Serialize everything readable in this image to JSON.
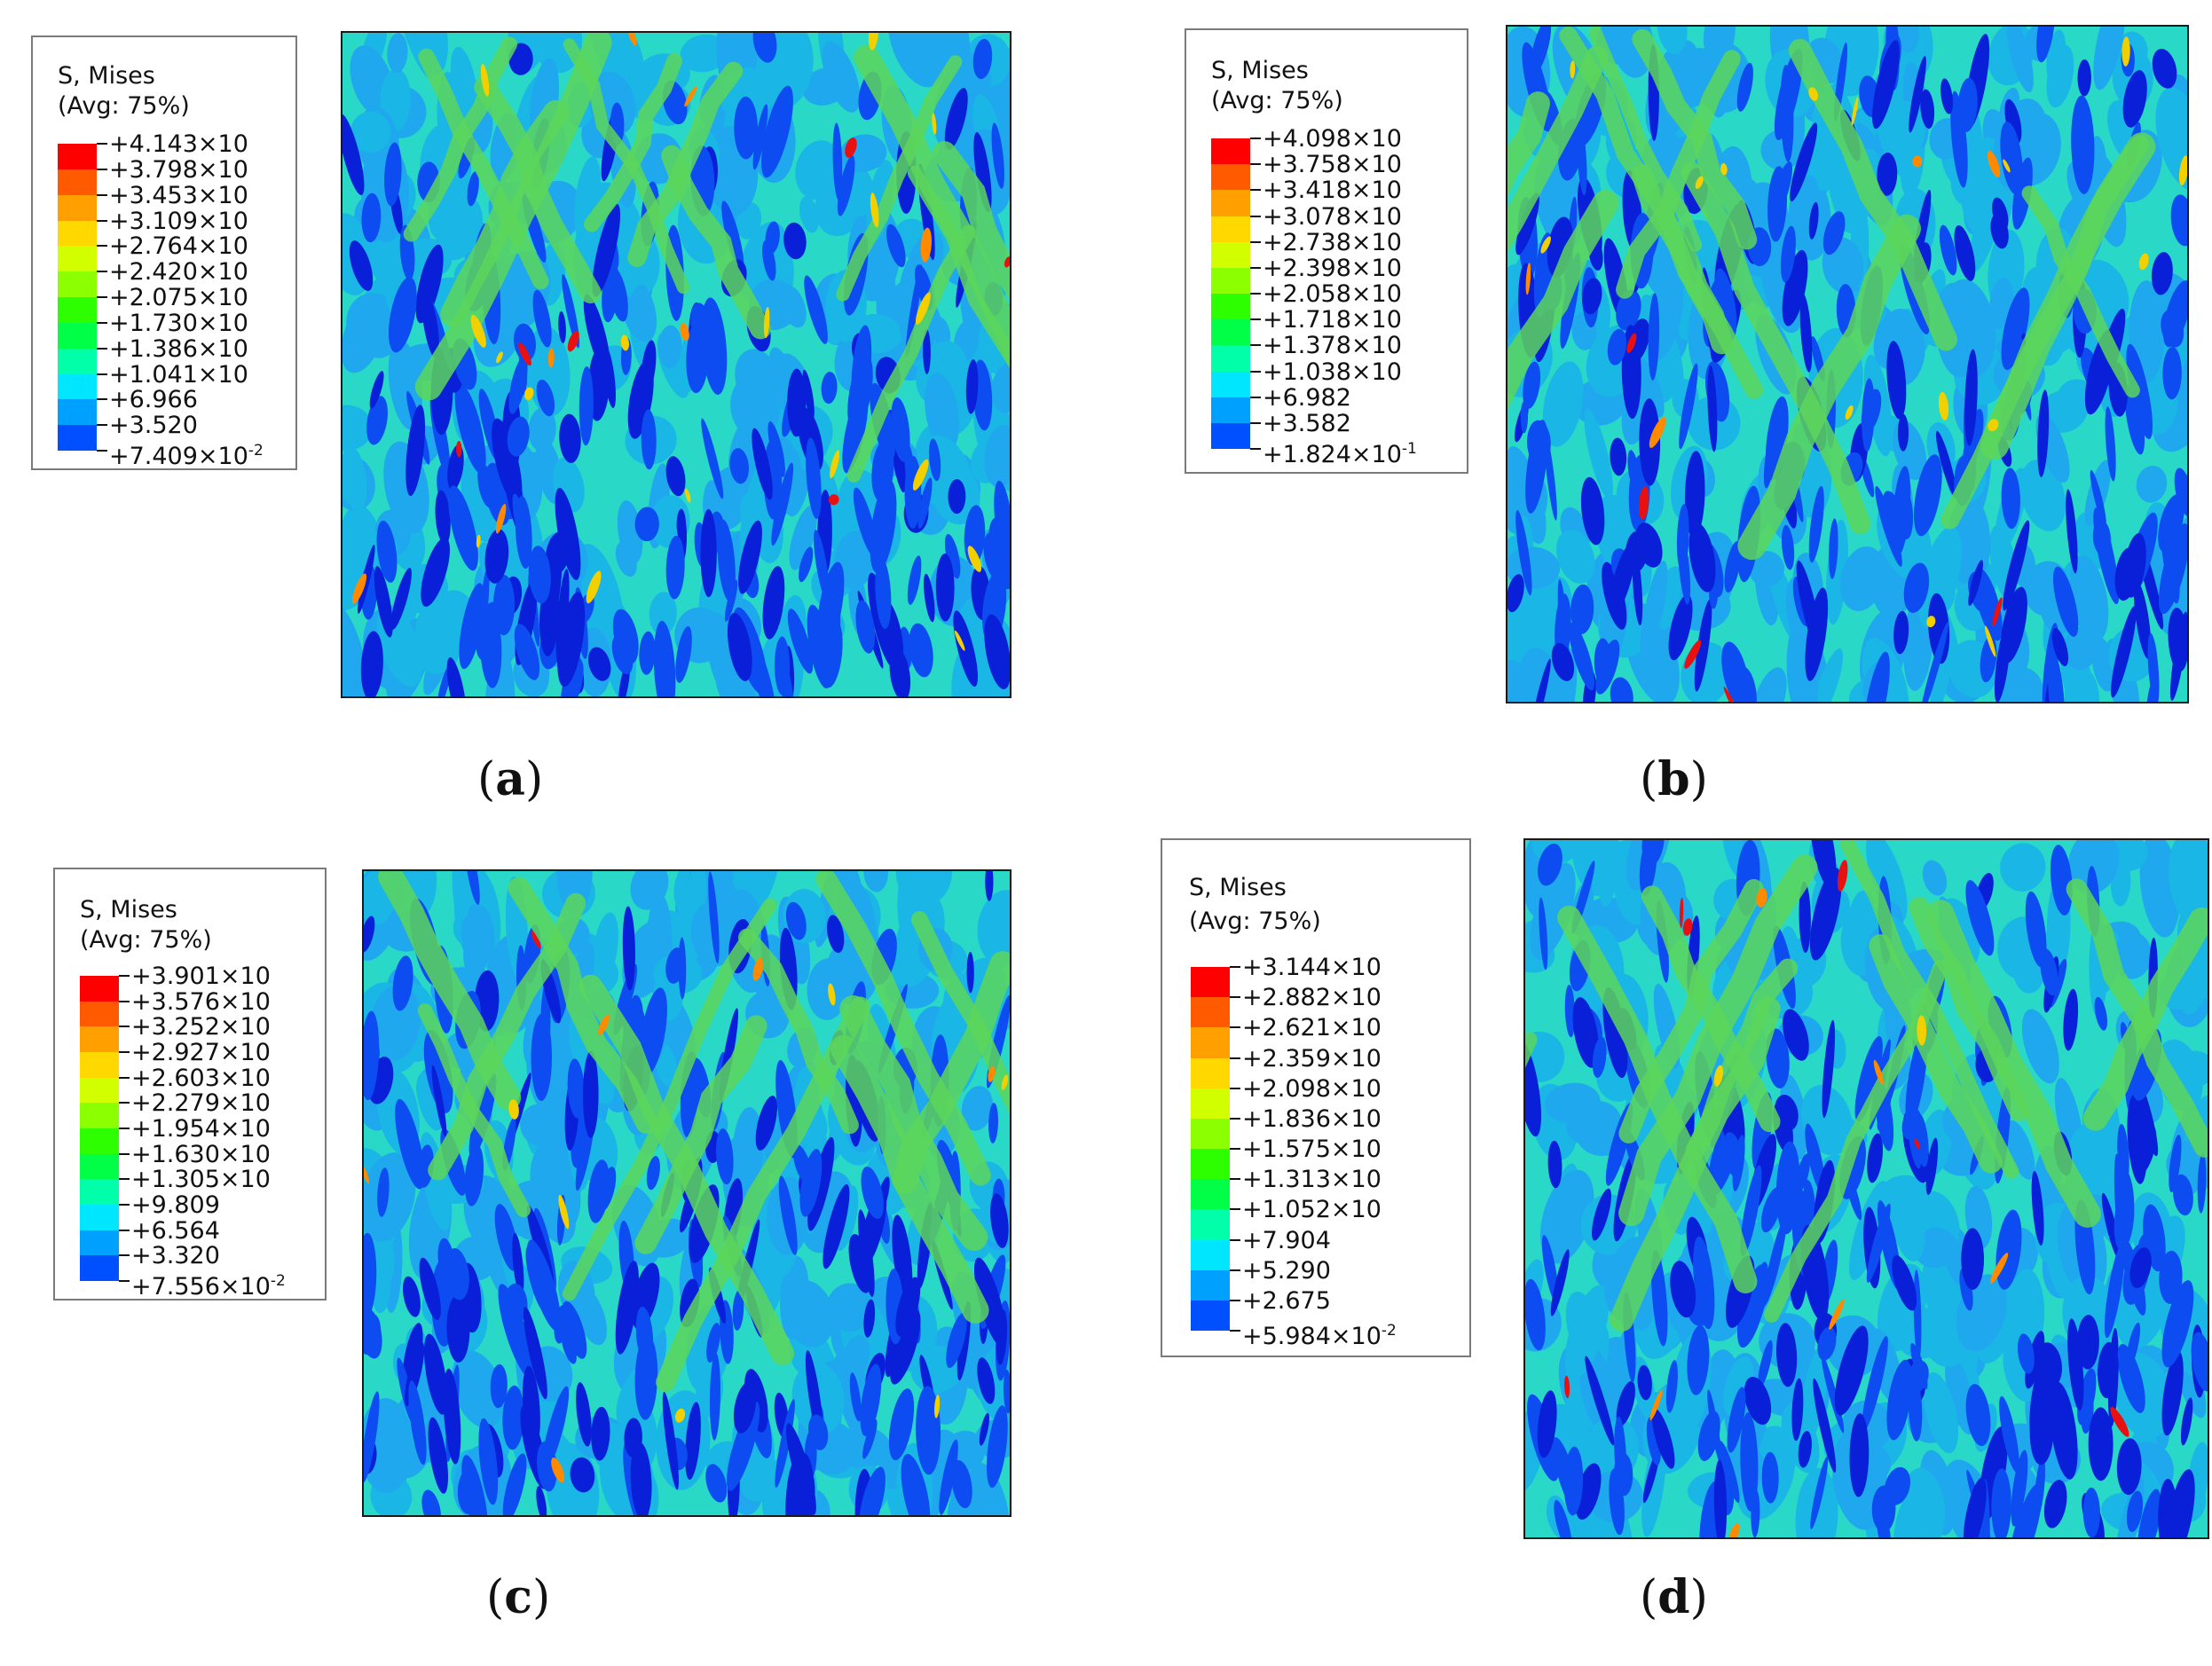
{
  "panels": [
    {
      "id": "a",
      "caption": "a",
      "legend": {
        "title": "S, Mises",
        "subtitle": "(Avg: 75%)",
        "levels": [
          "+4.143×10",
          "+3.798×10",
          "+3.453×10",
          "+3.109×10",
          "+2.764×10",
          "+2.420×10",
          "+2.075×10",
          "+1.730×10",
          "+1.386×10",
          "+1.041×10",
          "+6.966",
          "+3.520",
          "+7.409×10"
        ],
        "last_exponent": "-2"
      },
      "hot_level": 0.75
    },
    {
      "id": "b",
      "caption": "b",
      "legend": {
        "title": "S, Mises",
        "subtitle": "(Avg: 75%)",
        "levels": [
          "+4.098×10",
          "+3.758×10",
          "+3.418×10",
          "+3.078×10",
          "+2.738×10",
          "+2.398×10",
          "+2.058×10",
          "+1.718×10",
          "+1.378×10",
          "+1.038×10",
          "+6.982",
          "+3.582",
          "+1.824×10"
        ],
        "last_exponent": "-1"
      },
      "hot_level": 0.6
    },
    {
      "id": "c",
      "caption": "c",
      "legend": {
        "title": "S, Mises",
        "subtitle": "(Avg: 75%)",
        "levels": [
          "+3.901×10",
          "+3.576×10",
          "+3.252×10",
          "+2.927×10",
          "+2.603×10",
          "+2.279×10",
          "+1.954×10",
          "+1.630×10",
          "+1.305×10",
          "+9.809",
          "+6.564",
          "+3.320",
          "+7.556×10"
        ],
        "last_exponent": "-2"
      },
      "hot_level": 0.3
    },
    {
      "id": "d",
      "caption": "d",
      "legend": {
        "title": "S, Mises",
        "subtitle": "(Avg: 75%)",
        "levels": [
          "+3.144×10",
          "+2.882×10",
          "+2.621×10",
          "+2.359×10",
          "+2.098×10",
          "+1.836×10",
          "+1.575×10",
          "+1.313×10",
          "+1.052×10",
          "+7.904",
          "+5.290",
          "+2.675",
          "+5.984×10"
        ],
        "last_exponent": "-2"
      },
      "hot_level": 0.35
    }
  ],
  "colormap": [
    "#ff0000",
    "#ff5a00",
    "#ffa000",
    "#ffd800",
    "#d2ff00",
    "#8cff00",
    "#2eff00",
    "#00ff46",
    "#00ffa8",
    "#00e6ff",
    "#00a0ff",
    "#0050ff",
    "#0000ff"
  ]
}
